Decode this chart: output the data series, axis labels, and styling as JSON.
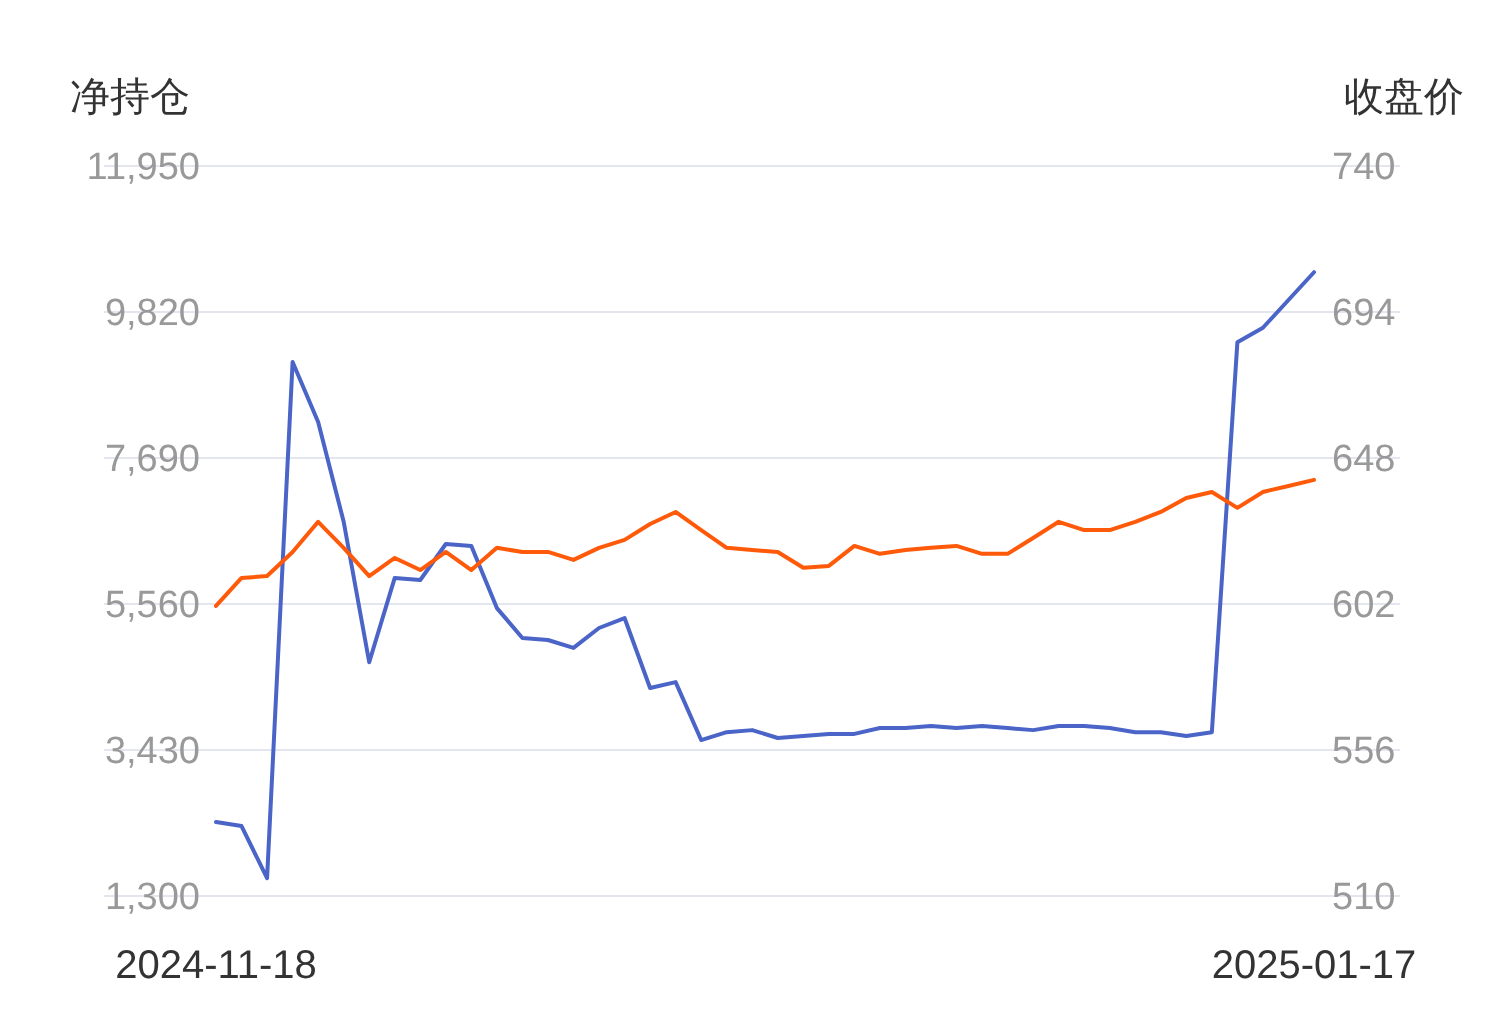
{
  "chart_data": {
    "type": "line",
    "ylabel": "净持仓",
    "y2label": "收盘价",
    "categories": [
      "2024-11-18",
      null,
      null,
      null,
      null,
      null,
      null,
      null,
      null,
      null,
      null,
      null,
      null,
      null,
      null,
      null,
      null,
      null,
      null,
      null,
      null,
      null,
      null,
      null,
      null,
      null,
      null,
      null,
      null,
      null,
      null,
      null,
      null,
      null,
      null,
      null,
      null,
      null,
      null,
      null,
      null,
      null,
      null,
      "2025-01-17"
    ],
    "series": [
      {
        "color": "#4a64c8",
        "values": [
          2380,
          2320,
          1560,
          9090,
          8215,
          6760,
          4710,
          5940,
          5910,
          6435,
          6405,
          5500,
          5065,
          5035,
          4920,
          5210,
          5355,
          4335,
          4420,
          3575,
          3690,
          3720,
          3605,
          3635,
          3665,
          3665,
          3750,
          3750,
          3780,
          3750,
          3780,
          3750,
          3720,
          3780,
          3780,
          3750,
          3690,
          3690,
          3635,
          3690,
          9380,
          9590,
          9995,
          10400
        ]
      },
      {
        "color": "#ff5a0a",
        "axis": "y2",
        "values": [
          601.4,
          610.2,
          610.8,
          618.4,
          627.9,
          619.7,
          610.8,
          616.5,
          612.7,
          618.4,
          612.7,
          619.7,
          618.4,
          618.4,
          615.9,
          619.7,
          622.2,
          627.2,
          631,
          625.3,
          619.7,
          619,
          618.4,
          613.4,
          614,
          620.3,
          617.8,
          619,
          619.7,
          620.3,
          617.8,
          617.8,
          622.8,
          627.9,
          625.3,
          625.3,
          627.9,
          631,
          635.4,
          637.3,
          632.3,
          637.3,
          639.2,
          641.1
        ]
      }
    ],
    "ylim": [
      1300,
      11950
    ],
    "yticks": [
      {
        "value": 1300,
        "label": "1,300"
      },
      {
        "value": 3430,
        "label": "3,430"
      },
      {
        "value": 5560,
        "label": "5,560"
      },
      {
        "value": 7690,
        "label": "7,690"
      },
      {
        "value": 9820,
        "label": "9,820"
      },
      {
        "value": 11950,
        "label": "11,950"
      }
    ],
    "y2lim": [
      510,
      740
    ],
    "y2ticks": [
      510,
      556,
      602,
      648,
      694,
      740
    ],
    "grid": "y",
    "marker": "none",
    "line_style": "solid"
  }
}
